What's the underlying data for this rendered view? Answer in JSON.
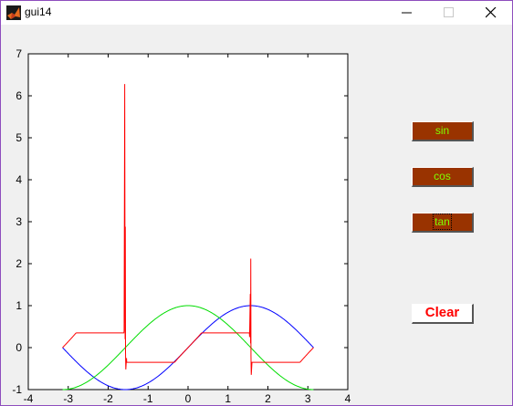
{
  "window": {
    "title": "gui14"
  },
  "buttons": {
    "sin": "sin",
    "cos": "cos",
    "tan": "tan",
    "clear": "Clear"
  },
  "colors": {
    "sin": "#0000ff",
    "cos": "#00dd00",
    "tan": "#ff0000",
    "button_bg": "#993300",
    "button_text": "#7fff00",
    "clear_text": "#ff0000"
  },
  "chart_data": {
    "type": "line",
    "xlim": [
      -4,
      4
    ],
    "ylim": [
      -1,
      7
    ],
    "xticks": [
      "-4",
      "-3",
      "-2",
      "-1",
      "0",
      "1",
      "2",
      "3",
      "4"
    ],
    "yticks": [
      "-1",
      "0",
      "1",
      "2",
      "3",
      "4",
      "5",
      "6",
      "7"
    ],
    "x_range": [
      -3.1416,
      3.1416
    ],
    "grid": false,
    "series": [
      {
        "function": "sin",
        "color": "#0000ff"
      },
      {
        "function": "cos",
        "color": "#00dd00"
      },
      {
        "function": "tan",
        "color": "#ff0000",
        "spike_peaks": [
          6.28,
          2.88,
          2.12,
          1.28
        ],
        "spike_troughs": [
          -0.52,
          -0.65
        ]
      }
    ]
  }
}
